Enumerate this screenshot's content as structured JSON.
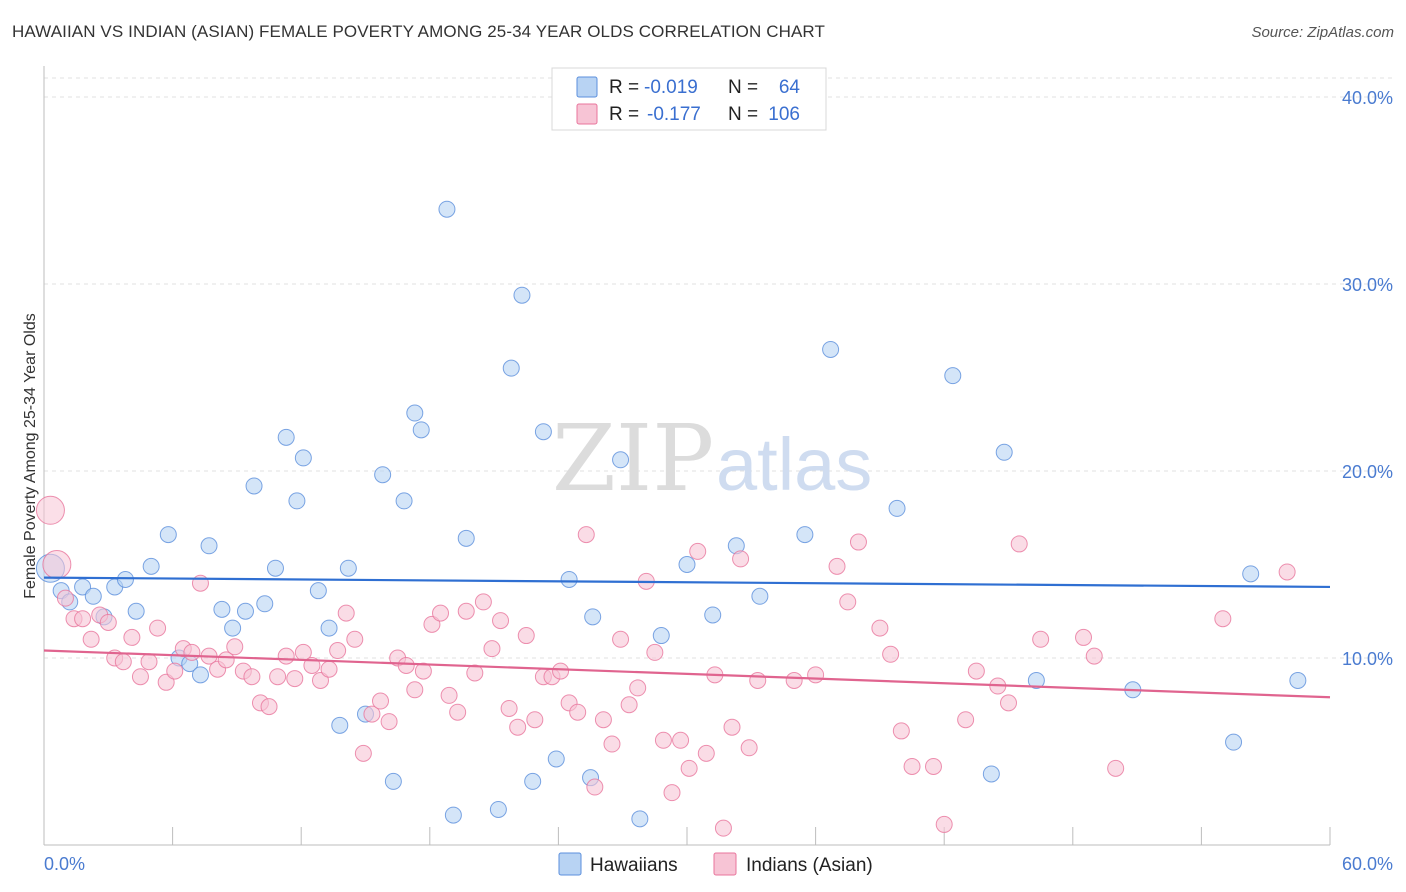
{
  "title": "HAWAIIAN VS INDIAN (ASIAN) FEMALE POVERTY AMONG 25-34 YEAR OLDS CORRELATION CHART",
  "source": "Source: ZipAtlas.com",
  "watermark": {
    "zip": "ZIP",
    "atlas": "atlas"
  },
  "legend": {
    "rows": [
      {
        "r_label": "R =",
        "r_value": "-0.019",
        "n_label": "N =",
        "n_value": "64",
        "color": "#9fc3ef"
      },
      {
        "r_label": "R =",
        "r_value": "-0.177",
        "n_label": "N =",
        "n_value": "106",
        "color": "#f4b3c8"
      }
    ]
  },
  "bottom_legend": [
    {
      "label": "Hawaiians",
      "color": "#9fc3ef"
    },
    {
      "label": "Indians (Asian)",
      "color": "#f4b3c8"
    }
  ],
  "chart_data": {
    "type": "scatter",
    "title": "HAWAIIAN VS INDIAN (ASIAN) FEMALE POVERTY AMONG 25-34 YEAR OLDS CORRELATION CHART",
    "xlabel": "",
    "ylabel": "Female Poverty Among 25-34 Year Olds",
    "xlim": [
      0,
      60
    ],
    "ylim": [
      0,
      40
    ],
    "x_tick_labels": [
      "0.0%",
      "60.0%"
    ],
    "y_ticks": [
      10,
      20,
      30,
      40
    ],
    "y_tick_labels": [
      "10.0%",
      "20.0%",
      "30.0%",
      "40.0%"
    ],
    "grid": true,
    "series": [
      {
        "name": "Hawaiians",
        "color": "#5b8fdc",
        "fill": "#b8d3f3",
        "trend": {
          "x": [
            0,
            60
          ],
          "y": [
            14.3,
            13.8
          ]
        },
        "points": [
          [
            0.3,
            14.8
          ],
          [
            0.8,
            13.6
          ],
          [
            1.2,
            13.0
          ],
          [
            1.8,
            13.8
          ],
          [
            2.3,
            13.3
          ],
          [
            2.8,
            12.2
          ],
          [
            3.3,
            13.8
          ],
          [
            3.8,
            14.2
          ],
          [
            4.3,
            12.5
          ],
          [
            5.0,
            14.9
          ],
          [
            5.8,
            16.6
          ],
          [
            6.3,
            10.0
          ],
          [
            6.8,
            9.7
          ],
          [
            7.3,
            9.1
          ],
          [
            7.7,
            16.0
          ],
          [
            8.3,
            12.6
          ],
          [
            8.8,
            11.6
          ],
          [
            9.4,
            12.5
          ],
          [
            9.8,
            19.2
          ],
          [
            10.3,
            12.9
          ],
          [
            10.8,
            14.8
          ],
          [
            11.3,
            21.8
          ],
          [
            11.8,
            18.4
          ],
          [
            12.1,
            20.7
          ],
          [
            12.8,
            13.6
          ],
          [
            13.3,
            11.6
          ],
          [
            14.2,
            14.8
          ],
          [
            13.8,
            6.4
          ],
          [
            15.0,
            7.0
          ],
          [
            15.8,
            19.8
          ],
          [
            16.3,
            3.4
          ],
          [
            16.8,
            18.4
          ],
          [
            17.3,
            23.1
          ],
          [
            17.6,
            22.2
          ],
          [
            18.8,
            34.0
          ],
          [
            19.1,
            1.6
          ],
          [
            19.7,
            16.4
          ],
          [
            21.2,
            1.9
          ],
          [
            21.8,
            25.5
          ],
          [
            22.3,
            29.4
          ],
          [
            22.8,
            3.4
          ],
          [
            23.3,
            22.1
          ],
          [
            23.9,
            4.6
          ],
          [
            24.5,
            14.2
          ],
          [
            25.5,
            3.6
          ],
          [
            25.6,
            12.2
          ],
          [
            26.9,
            20.6
          ],
          [
            27.8,
            1.4
          ],
          [
            28.8,
            11.2
          ],
          [
            30.0,
            15.0
          ],
          [
            31.2,
            12.3
          ],
          [
            32.3,
            16.0
          ],
          [
            33.4,
            13.3
          ],
          [
            35.5,
            16.6
          ],
          [
            36.7,
            26.5
          ],
          [
            39.8,
            18.0
          ],
          [
            42.4,
            25.1
          ],
          [
            44.2,
            3.8
          ],
          [
            44.8,
            21.0
          ],
          [
            46.3,
            8.8
          ],
          [
            50.8,
            8.3
          ],
          [
            55.5,
            5.5
          ],
          [
            56.3,
            14.5
          ],
          [
            58.5,
            8.8
          ]
        ]
      },
      {
        "name": "Indians (Asian)",
        "color": "#e8759c",
        "fill": "#f7c4d5",
        "trend": {
          "x": [
            0,
            60
          ],
          "y": [
            10.4,
            7.9
          ]
        },
        "points": [
          [
            0.3,
            17.9
          ],
          [
            0.6,
            15.0
          ],
          [
            1.0,
            13.2
          ],
          [
            1.4,
            12.1
          ],
          [
            1.8,
            12.1
          ],
          [
            2.2,
            11.0
          ],
          [
            2.6,
            12.3
          ],
          [
            3.0,
            11.9
          ],
          [
            3.3,
            10.0
          ],
          [
            3.7,
            9.8
          ],
          [
            4.1,
            11.1
          ],
          [
            4.5,
            9.0
          ],
          [
            4.9,
            9.8
          ],
          [
            5.3,
            11.6
          ],
          [
            5.7,
            8.7
          ],
          [
            6.1,
            9.3
          ],
          [
            6.5,
            10.5
          ],
          [
            6.9,
            10.3
          ],
          [
            7.3,
            14.0
          ],
          [
            7.7,
            10.1
          ],
          [
            8.1,
            9.4
          ],
          [
            8.5,
            9.9
          ],
          [
            8.9,
            10.6
          ],
          [
            9.3,
            9.3
          ],
          [
            9.7,
            9.0
          ],
          [
            10.1,
            7.6
          ],
          [
            10.5,
            7.4
          ],
          [
            10.9,
            9.0
          ],
          [
            11.3,
            10.1
          ],
          [
            11.7,
            8.9
          ],
          [
            12.1,
            10.3
          ],
          [
            12.5,
            9.6
          ],
          [
            12.9,
            8.8
          ],
          [
            13.3,
            9.4
          ],
          [
            13.7,
            10.4
          ],
          [
            14.1,
            12.4
          ],
          [
            14.5,
            11.0
          ],
          [
            14.9,
            4.9
          ],
          [
            15.3,
            7.0
          ],
          [
            15.7,
            7.7
          ],
          [
            16.1,
            6.6
          ],
          [
            16.5,
            10.0
          ],
          [
            16.9,
            9.6
          ],
          [
            17.3,
            8.3
          ],
          [
            17.7,
            9.3
          ],
          [
            18.1,
            11.8
          ],
          [
            18.5,
            12.4
          ],
          [
            18.9,
            8.0
          ],
          [
            19.3,
            7.1
          ],
          [
            19.7,
            12.5
          ],
          [
            20.1,
            9.2
          ],
          [
            20.5,
            13.0
          ],
          [
            20.9,
            10.5
          ],
          [
            21.3,
            12.0
          ],
          [
            21.7,
            7.3
          ],
          [
            22.1,
            6.3
          ],
          [
            22.5,
            11.2
          ],
          [
            22.9,
            6.7
          ],
          [
            23.3,
            9.0
          ],
          [
            23.7,
            9.0
          ],
          [
            24.1,
            9.3
          ],
          [
            24.5,
            7.6
          ],
          [
            24.9,
            7.1
          ],
          [
            25.3,
            16.6
          ],
          [
            25.7,
            3.1
          ],
          [
            26.1,
            6.7
          ],
          [
            26.5,
            5.4
          ],
          [
            26.9,
            11.0
          ],
          [
            27.3,
            7.5
          ],
          [
            27.7,
            8.4
          ],
          [
            28.1,
            14.1
          ],
          [
            28.5,
            10.3
          ],
          [
            28.9,
            5.6
          ],
          [
            29.3,
            2.8
          ],
          [
            29.7,
            5.6
          ],
          [
            30.1,
            4.1
          ],
          [
            30.5,
            15.7
          ],
          [
            30.9,
            4.9
          ],
          [
            31.3,
            9.1
          ],
          [
            31.7,
            0.9
          ],
          [
            32.1,
            6.3
          ],
          [
            32.5,
            15.3
          ],
          [
            32.9,
            5.2
          ],
          [
            33.3,
            8.8
          ],
          [
            35.0,
            8.8
          ],
          [
            36.0,
            9.1
          ],
          [
            37.0,
            14.9
          ],
          [
            37.5,
            13.0
          ],
          [
            38.0,
            16.2
          ],
          [
            39.0,
            11.6
          ],
          [
            39.5,
            10.2
          ],
          [
            40.0,
            6.1
          ],
          [
            40.5,
            4.2
          ],
          [
            41.5,
            4.2
          ],
          [
            42.0,
            1.1
          ],
          [
            43.0,
            6.7
          ],
          [
            43.5,
            9.3
          ],
          [
            44.5,
            8.5
          ],
          [
            45.0,
            7.6
          ],
          [
            45.5,
            16.1
          ],
          [
            46.5,
            11.0
          ],
          [
            48.5,
            11.1
          ],
          [
            49.0,
            10.1
          ],
          [
            50.0,
            4.1
          ],
          [
            55.0,
            12.1
          ],
          [
            58.0,
            14.6
          ]
        ]
      }
    ]
  }
}
